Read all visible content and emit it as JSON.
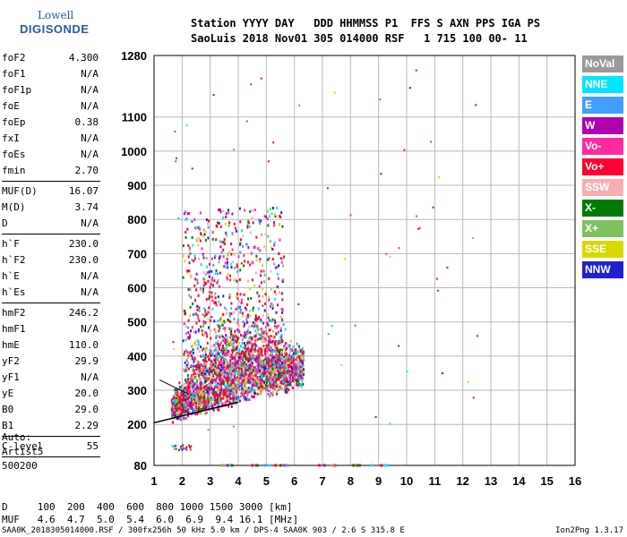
{
  "logo": {
    "line1": "Lowell",
    "line2": "DIGISONDE"
  },
  "header": {
    "line1": "Station YYYY DAY   DDD HHMMSS P1  FFS S AXN PPS IGA PS",
    "line2": "SaoLuis 2018 Nov01 305 014000 RSF   1 715 100 00- 11"
  },
  "params": [
    [
      {
        "k": "foF2",
        "v": "4.300"
      },
      {
        "k": "foF1",
        "v": "N/A"
      },
      {
        "k": "foF1p",
        "v": "N/A"
      },
      {
        "k": "foE",
        "v": "N/A"
      },
      {
        "k": "foEp",
        "v": "0.38"
      },
      {
        "k": "fxI",
        "v": "N/A"
      },
      {
        "k": "foEs",
        "v": "N/A"
      },
      {
        "k": "fmin",
        "v": "2.70"
      }
    ],
    [
      {
        "k": "MUF(D)",
        "v": "16.07"
      },
      {
        "k": "M(D)",
        "v": "3.74"
      },
      {
        "k": "D",
        "v": "N/A"
      }
    ],
    [
      {
        "k": "h`F",
        "v": "230.0"
      },
      {
        "k": "h`F2",
        "v": "230.0"
      },
      {
        "k": "h`E",
        "v": "N/A"
      },
      {
        "k": "h`Es",
        "v": "N/A"
      }
    ],
    [
      {
        "k": "hmF2",
        "v": "246.2"
      },
      {
        "k": "hmF1",
        "v": "N/A"
      },
      {
        "k": "hmE",
        "v": "110.0"
      },
      {
        "k": "yF2",
        "v": "29.9"
      },
      {
        "k": "yF1",
        "v": "N/A"
      },
      {
        "k": "yE",
        "v": "20.0"
      },
      {
        "k": "B0",
        "v": "29.0"
      },
      {
        "k": "B1",
        "v": "2.29"
      }
    ],
    [
      {
        "k": "C-level",
        "v": "55"
      }
    ]
  ],
  "auto": {
    "line1": "Auto:",
    "line2": "Artist5",
    "line3": "500200"
  },
  "legend": [
    {
      "label": "NoVal",
      "color": "#9a9a9a"
    },
    {
      "label": "NNE",
      "color": "#00e5ff"
    },
    {
      "label": "E",
      "color": "#3fa0ff"
    },
    {
      "label": "W",
      "color": "#b000b0"
    },
    {
      "label": "Vo-",
      "color": "#ff2aa0"
    },
    {
      "label": "Vo+",
      "color": "#ff0030"
    },
    {
      "label": "SSW",
      "color": "#f4b0b0"
    },
    {
      "label": "X-",
      "color": "#007a00"
    },
    {
      "label": "X+",
      "color": "#80c060"
    },
    {
      "label": "SSE",
      "color": "#d8d800"
    },
    {
      "label": "NNW",
      "color": "#2020d0"
    }
  ],
  "bottom": {
    "line1": "D     100  200  400  600  800 1000 1500 3000 [km]",
    "line2": "MUF   4.6  4.7  5.0  5.4  6.0  6.9  9.4 16.1 [MHz]",
    "footer": "SAA0K_2018305014000.RSF / 300fx256h 50 kHz 5.0 km / DPS-4 SAA0K 903 / 2.6 S 315.8 E",
    "version": "Ion2Png 1.3.17"
  },
  "chart_data": {
    "type": "scatter",
    "xlim": [
      1,
      16
    ],
    "ylim": [
      80,
      1280
    ],
    "xticks": [
      1,
      2,
      3,
      4,
      5,
      6,
      7,
      8,
      9,
      10,
      11,
      12,
      13,
      14,
      15,
      16
    ],
    "yticks": [
      80,
      200,
      300,
      400,
      500,
      600,
      700,
      800,
      900,
      1000,
      1100,
      1280
    ],
    "grid": true
  }
}
